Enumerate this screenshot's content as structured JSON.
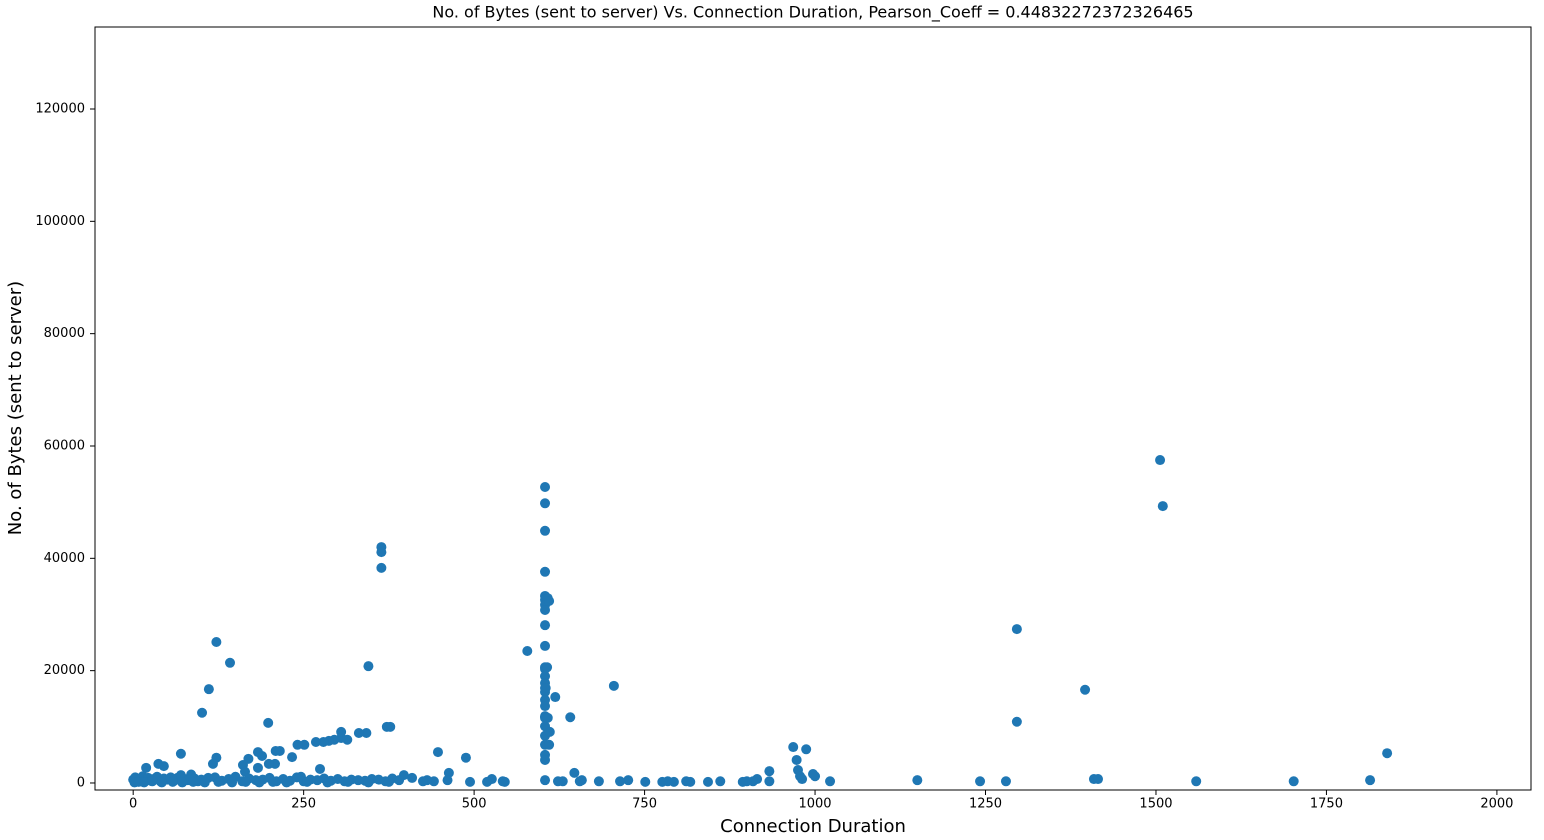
{
  "chart_data": {
    "type": "scatter",
    "title": "No. of Bytes (sent to server) Vs. Connection Duration, Pearson_Coeff = 0.44832272372326465",
    "x_label": "Connection Duration",
    "y_label": "No. of Bytes (sent to server)",
    "color": "#1f77b4",
    "xlim": [
      -56,
      2050
    ],
    "ylim": [
      -1250,
      134600
    ],
    "xticks": [
      0,
      250,
      500,
      750,
      1000,
      1250,
      1500,
      1750,
      2000
    ],
    "yticks": [
      0,
      20000,
      40000,
      60000,
      80000,
      100000,
      120000
    ],
    "x": [
      1506,
      1510,
      1296,
      1296,
      1396,
      1839,
      1814,
      1702,
      1559,
      1409,
      1415,
      1280,
      1242,
      1150,
      1022,
      1000,
      997,
      987,
      968,
      973,
      975,
      978,
      981,
      933,
      933,
      915,
      909,
      900,
      894,
      861,
      843,
      817,
      811,
      793,
      784,
      776,
      751,
      726,
      714,
      705,
      683,
      658,
      655,
      647,
      641,
      619,
      630,
      623,
      578,
      604,
      604,
      604,
      604,
      604,
      604,
      604,
      604,
      604,
      604,
      604,
      604,
      604,
      604,
      604,
      604,
      604,
      604,
      604,
      604,
      604,
      604,
      604,
      604,
      604,
      604,
      608,
      610,
      607,
      605,
      608,
      611,
      610,
      545,
      542,
      526,
      519,
      494,
      488,
      463,
      461,
      447,
      441,
      431,
      425,
      364,
      364,
      364,
      345,
      377,
      372,
      342,
      331,
      314,
      305,
      305,
      295,
      287,
      279,
      268,
      251,
      241,
      233,
      215,
      209,
      208,
      199,
      198,
      189,
      183,
      183,
      169,
      161,
      164,
      122,
      117,
      122,
      142,
      111,
      101,
      70,
      45,
      37,
      19,
      274,
      397,
      409,
      246,
      0,
      3,
      6,
      10,
      14,
      18,
      22,
      26,
      30,
      35,
      40,
      45,
      50,
      55,
      60,
      65,
      70,
      75,
      80,
      85,
      90,
      95,
      100,
      110,
      120,
      130,
      140,
      150,
      160,
      170,
      180,
      190,
      200,
      210,
      220,
      230,
      240,
      250,
      260,
      270,
      280,
      290,
      300,
      310,
      320,
      330,
      340,
      350,
      360,
      370,
      380,
      390,
      2,
      8,
      16,
      28,
      42,
      58,
      72,
      88,
      105,
      125,
      145,
      165,
      185,
      205,
      225,
      255,
      285,
      315,
      345,
      375
    ],
    "values": [
      57500,
      49300,
      27400,
      10900,
      16600,
      5300,
      500,
      300,
      300,
      700,
      700,
      300,
      300,
      500,
      300,
      1200,
      1600,
      6000,
      6400,
      4100,
      2300,
      1200,
      700,
      2100,
      300,
      700,
      300,
      300,
      200,
      300,
      200,
      200,
      300,
      200,
      300,
      200,
      200,
      500,
      300,
      17300,
      300,
      500,
      300,
      1800,
      11700,
      15300,
      300,
      300,
      23500,
      52700,
      49800,
      44900,
      37600,
      33300,
      32600,
      31700,
      30800,
      28100,
      24400,
      20600,
      20300,
      19000,
      17800,
      16900,
      16200,
      14800,
      13700,
      11900,
      11600,
      10100,
      8400,
      6800,
      5000,
      4100,
      500,
      32900,
      32400,
      20600,
      16900,
      11600,
      9100,
      6800,
      200,
      300,
      700,
      200,
      200,
      4500,
      1800,
      500,
      5500,
      300,
      500,
      300,
      42000,
      41100,
      38300,
      20800,
      10000,
      10000,
      8900,
      8900,
      7700,
      8000,
      9100,
      7700,
      7500,
      7300,
      7300,
      6800,
      6800,
      4600,
      5700,
      5700,
      3400,
      3400,
      10700,
      4800,
      5500,
      2700,
      4300,
      3200,
      2000,
      4500,
      3400,
      25100,
      21400,
      16700,
      12500,
      5200,
      3000,
      3400,
      2700,
      2500,
      1400,
      900,
      1100,
      600,
      1000,
      300,
      800,
      1200,
      500,
      900,
      400,
      700,
      1100,
      300,
      800,
      600,
      1000,
      400,
      900,
      1400,
      700,
      500,
      1500,
      800,
      300,
      600,
      900,
      1000,
      400,
      700,
      1100,
      300,
      800,
      500,
      600,
      900,
      300,
      700,
      400,
      1000,
      300,
      600,
      500,
      800,
      400,
      700,
      300,
      600,
      500,
      400,
      700,
      600,
      300,
      800,
      500,
      100,
      200,
      100,
      300,
      100,
      200,
      100,
      200,
      100,
      200,
      100,
      200,
      100,
      200,
      100,
      200,
      100,
      200,
      100,
      200
    ]
  }
}
